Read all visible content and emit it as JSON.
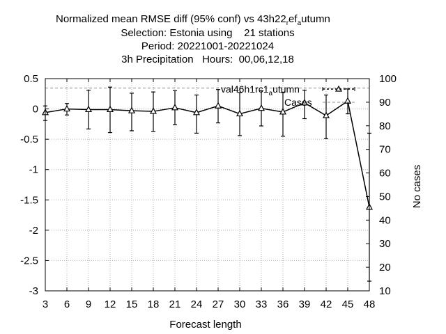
{
  "title_lines": {
    "l1_main": "Normalized mean RMSE diff (95% conf) vs 43h22",
    "l1_sub1": "r",
    "l1_mid": "ef",
    "l1_sub2": "a",
    "l1_end": "utumn",
    "l2": "Selection: Estonia using    21 stations",
    "l3": "Period: 20221001-20221024",
    "l4": "3h Precipitation   Hours:  00,06,12,18"
  },
  "chart_data": {
    "type": "line",
    "xlabel": "Forecast length",
    "ylabel_right": "No cases",
    "x_ticks": [
      3,
      6,
      9,
      12,
      15,
      18,
      21,
      24,
      27,
      30,
      33,
      36,
      39,
      42,
      45,
      48
    ],
    "y_ticks": [
      "0.5",
      "0",
      "-0.5",
      "-1",
      "-1.5",
      "-2",
      "-2.5",
      "-3"
    ],
    "y2_ticks": [
      "100",
      "90",
      "80",
      "70",
      "60",
      "50",
      "40",
      "30",
      "20",
      "10"
    ],
    "xlim": [
      3,
      48
    ],
    "ylim": [
      -3,
      0.5
    ],
    "y2lim": [
      10,
      100
    ],
    "grid": true,
    "legend_position": "top-right",
    "series": [
      {
        "name_main": "val46h1rc1",
        "name_sub": "a",
        "name_end": "utumn",
        "color": "#000000",
        "x": [
          3,
          6,
          9,
          12,
          15,
          18,
          21,
          24,
          27,
          30,
          33,
          36,
          39,
          42,
          45,
          48
        ],
        "y": [
          -0.06,
          0.0,
          -0.01,
          -0.01,
          -0.03,
          -0.04,
          0.02,
          -0.06,
          0.05,
          -0.08,
          0.01,
          -0.05,
          0.1,
          -0.11,
          0.13,
          -1.62
        ],
        "err_low": [
          -0.19,
          -0.1,
          -0.33,
          -0.39,
          -0.36,
          -0.37,
          -0.26,
          -0.4,
          -0.23,
          -0.44,
          -0.28,
          -0.45,
          -0.16,
          -0.49,
          -0.08,
          -2.84
        ],
        "err_high": [
          0.05,
          0.09,
          0.31,
          0.36,
          0.26,
          0.28,
          0.3,
          0.23,
          0.32,
          0.27,
          0.3,
          0.27,
          0.31,
          0.23,
          0.33,
          -0.4
        ]
      }
    ],
    "cases": {
      "name": "Cases",
      "color": "#888888",
      "value": 96
    }
  }
}
